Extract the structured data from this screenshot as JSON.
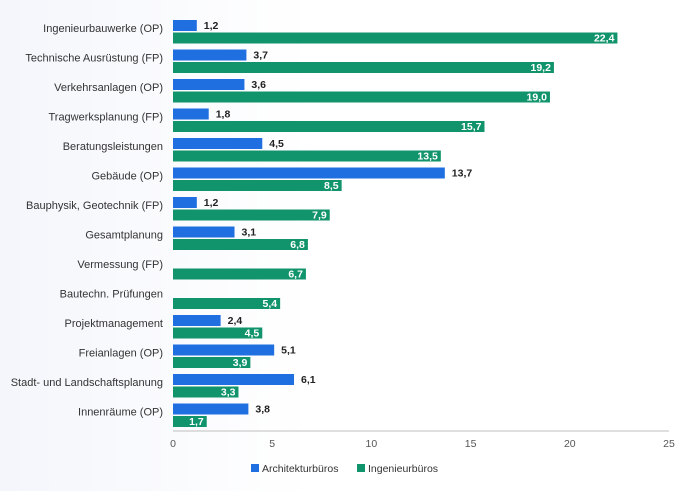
{
  "chart_data": {
    "type": "bar",
    "orientation": "horizontal",
    "categories": [
      "Ingenieurbauwerke (OP)",
      "Technische Ausrüstung (FP)",
      "Verkehrsanlagen (OP)",
      "Tragwerksplanung (FP)",
      "Beratungsleistungen",
      "Gebäude (OP)",
      "Bauphysik, Geotechnik (FP)",
      "Gesamtplanung",
      "Vermessung (FP)",
      "Bautechn. Prüfungen",
      "Projektmanagement",
      "Freianlagen (OP)",
      "Stadt- und Landschaftsplanung",
      "Innenräume (OP)"
    ],
    "series": [
      {
        "name": "Architekturbüros",
        "color": "#1f6fe0",
        "values": [
          1.2,
          3.7,
          3.6,
          1.8,
          4.5,
          13.7,
          1.2,
          3.1,
          null,
          null,
          2.4,
          5.1,
          6.1,
          3.8
        ],
        "labels": [
          "1,2",
          "3,7",
          "3,6",
          "1,8",
          "4,5",
          "13,7",
          "1,2",
          "3,1",
          "",
          "",
          "2,4",
          "5,1",
          "6,1",
          "3,8"
        ]
      },
      {
        "name": "Ingenieurbüros",
        "color": "#11946b",
        "values": [
          22.4,
          19.2,
          19.0,
          15.7,
          13.5,
          8.5,
          7.9,
          6.8,
          6.7,
          5.4,
          4.5,
          3.9,
          3.3,
          1.7
        ],
        "labels": [
          "22,4",
          "19,2",
          "19,0",
          "15,7",
          "13,5",
          "8,5",
          "7,9",
          "6,8",
          "6,7",
          "5,4",
          "4,5",
          "3,9",
          "3,3",
          "1,7"
        ]
      }
    ],
    "xlim": [
      0,
      25
    ],
    "xticks": [
      0,
      5,
      10,
      15,
      20,
      25
    ],
    "grid": false,
    "legend_position": "bottom"
  }
}
